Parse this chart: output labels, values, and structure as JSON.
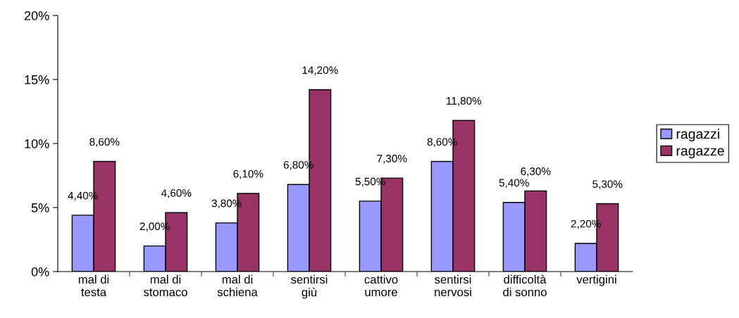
{
  "chart_data": {
    "type": "bar",
    "categories": [
      "mal di\ntesta",
      "mal di\nstomaco",
      "mal di\nschiena",
      "sentirsi\ngiù",
      "cattivo\numore",
      "sentirsi\nnervosi",
      "difficoltà\ndi sonno",
      "vertigini"
    ],
    "series": [
      {
        "name": "ragazzi",
        "color": "#9999ff",
        "values": [
          4.4,
          2.0,
          3.8,
          6.8,
          5.5,
          8.6,
          5.4,
          2.2
        ],
        "value_labels": [
          "4,40%",
          "2,00%",
          "3,80%",
          "6,80%",
          "5,50%",
          "8,60%",
          "5,40%",
          "2,20%"
        ]
      },
      {
        "name": "ragazze",
        "color": "#993366",
        "values": [
          8.6,
          4.6,
          6.1,
          14.2,
          7.3,
          11.8,
          6.3,
          5.3
        ],
        "value_labels": [
          "8,60%",
          "4,60%",
          "6,10%",
          "14,20%",
          "7,30%",
          "11,80%",
          "6,30%",
          "5,30%"
        ]
      }
    ],
    "ylim": [
      0,
      20
    ],
    "yticks": [
      {
        "value": 0,
        "label": "0%"
      },
      {
        "value": 5,
        "label": "5%"
      },
      {
        "value": 10,
        "label": "10%"
      },
      {
        "value": 15,
        "label": "15%"
      },
      {
        "value": 20,
        "label": "20%"
      }
    ],
    "grid": false,
    "legend": "right"
  }
}
